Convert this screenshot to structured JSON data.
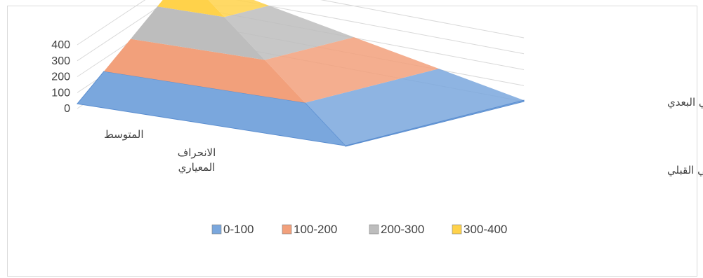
{
  "chart_data": {
    "type": "surface",
    "title": "",
    "zlim": [
      0,
      400
    ],
    "z_ticks": [
      "0",
      "100",
      "200",
      "300",
      "400"
    ],
    "x_categories": [
      "المتوسط",
      "الانحراف المعياري"
    ],
    "series": [
      {
        "name": "الاختبار التحصيلي القبلي",
        "values": [
          30,
          4
        ]
      },
      {
        "name": "الاختبار التحصيلي البعدي",
        "values": [
          400,
          8
        ]
      }
    ],
    "legend": {
      "position": "bottom",
      "bands": [
        {
          "label": "0-100",
          "color": "#7aa7dd"
        },
        {
          "label": "100-200",
          "color": "#f2a07b"
        },
        {
          "label": "200-300",
          "color": "#bdbdbd"
        },
        {
          "label": "300-400",
          "color": "#ffd24a"
        }
      ]
    }
  }
}
